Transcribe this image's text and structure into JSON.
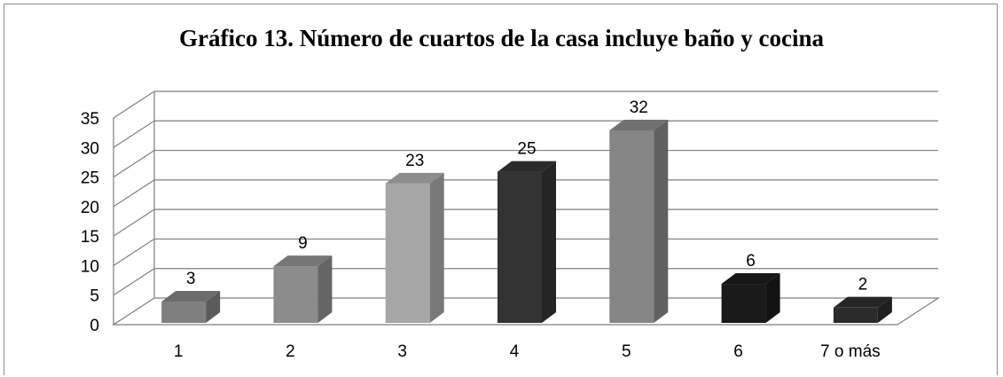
{
  "chart_data": {
    "type": "bar",
    "title": "Gráfico 13. Número de cuartos de la casa incluye baño y cocina",
    "categories": [
      "1",
      "2",
      "3",
      "4",
      "5",
      "6",
      "7 o más"
    ],
    "values": [
      3,
      9,
      23,
      25,
      32,
      6,
      2
    ],
    "data_labels": [
      "3",
      "9",
      "23",
      "25",
      "32",
      "6",
      "2"
    ],
    "y_ticks": [
      "0",
      "5",
      "10",
      "15",
      "20",
      "25",
      "30",
      "35"
    ],
    "ylim": [
      0,
      35
    ],
    "grid": true,
    "legend": false,
    "style": "3d-column",
    "bar_colors": [
      "#7f7f7f",
      "#8c8c8c",
      "#a6a6a6",
      "#333333",
      "#858585",
      "#1a1a1a",
      "#2b2b2b"
    ],
    "gridline_color": "#7f7f7f"
  }
}
